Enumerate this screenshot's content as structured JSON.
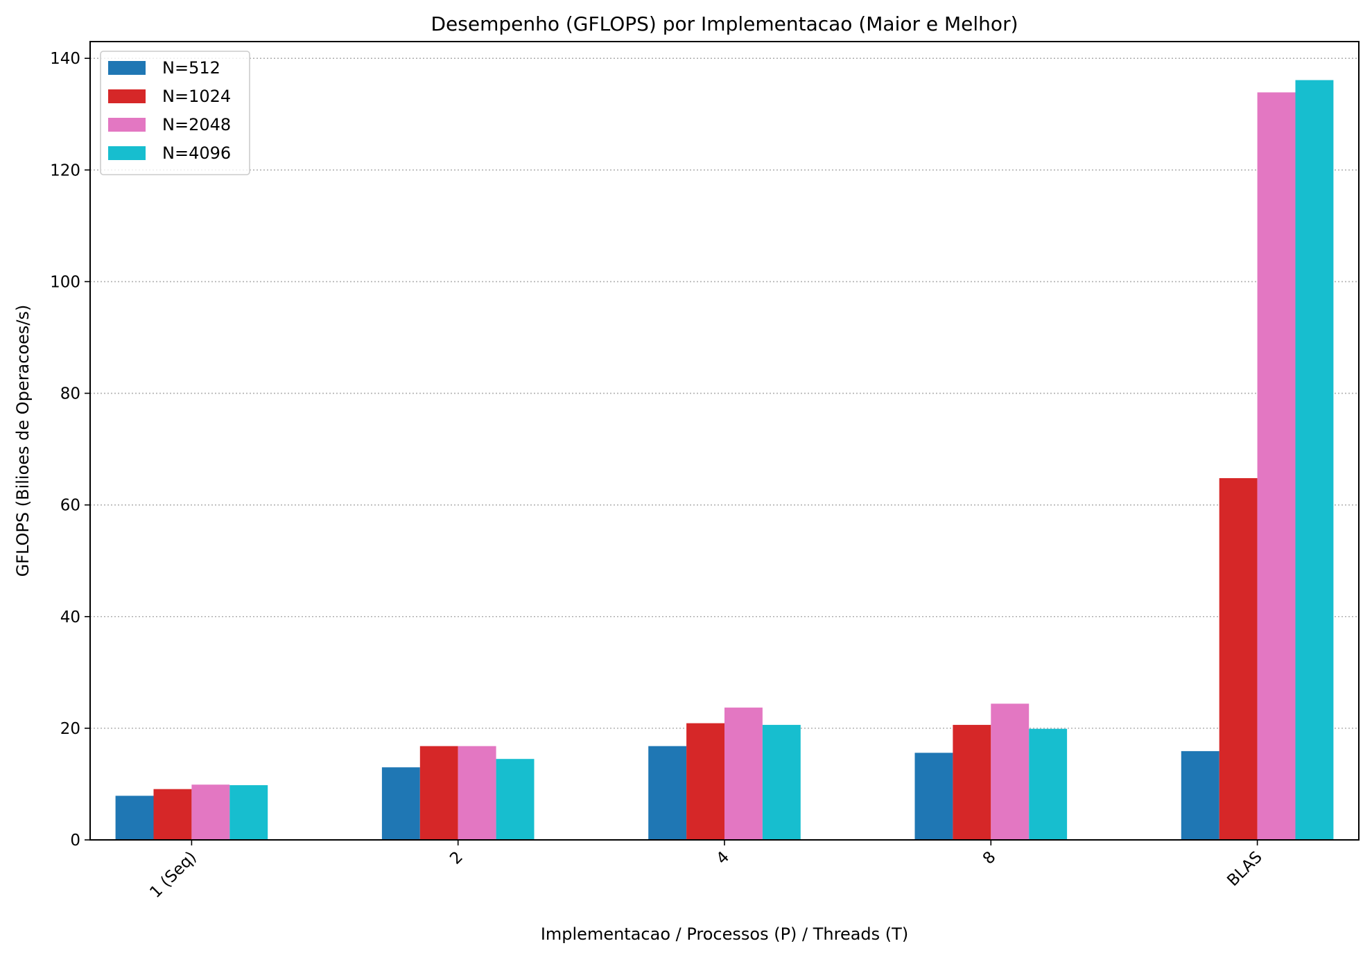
{
  "chart_data": {
    "type": "bar",
    "title": "Desempenho (GFLOPS) por Implementacao (Maior e Melhor)",
    "xlabel": "Implementacao / Processos (P) / Threads (T)",
    "ylabel": "GFLOPS (Bilioes de Operacoes/s)",
    "categories": [
      "1 (Seq)",
      "2",
      "4",
      "8",
      "BLAS"
    ],
    "ylim": [
      0,
      143
    ],
    "yticks": [
      0,
      20,
      40,
      60,
      80,
      100,
      120,
      140
    ],
    "grid": "y-dotted",
    "legend_position": "top-left",
    "series": [
      {
        "name": "N=512",
        "color": "#1f77b4",
        "values": [
          7.9,
          13.0,
          16.8,
          15.6,
          15.9
        ]
      },
      {
        "name": "N=1024",
        "color": "#d62728",
        "values": [
          9.1,
          16.8,
          20.9,
          20.6,
          64.8
        ]
      },
      {
        "name": "N=2048",
        "color": "#e377c2",
        "values": [
          9.9,
          16.8,
          23.7,
          24.4,
          133.9
        ]
      },
      {
        "name": "N=4096",
        "color": "#17becf",
        "values": [
          9.8,
          14.5,
          20.6,
          19.9,
          136.1
        ]
      }
    ]
  }
}
